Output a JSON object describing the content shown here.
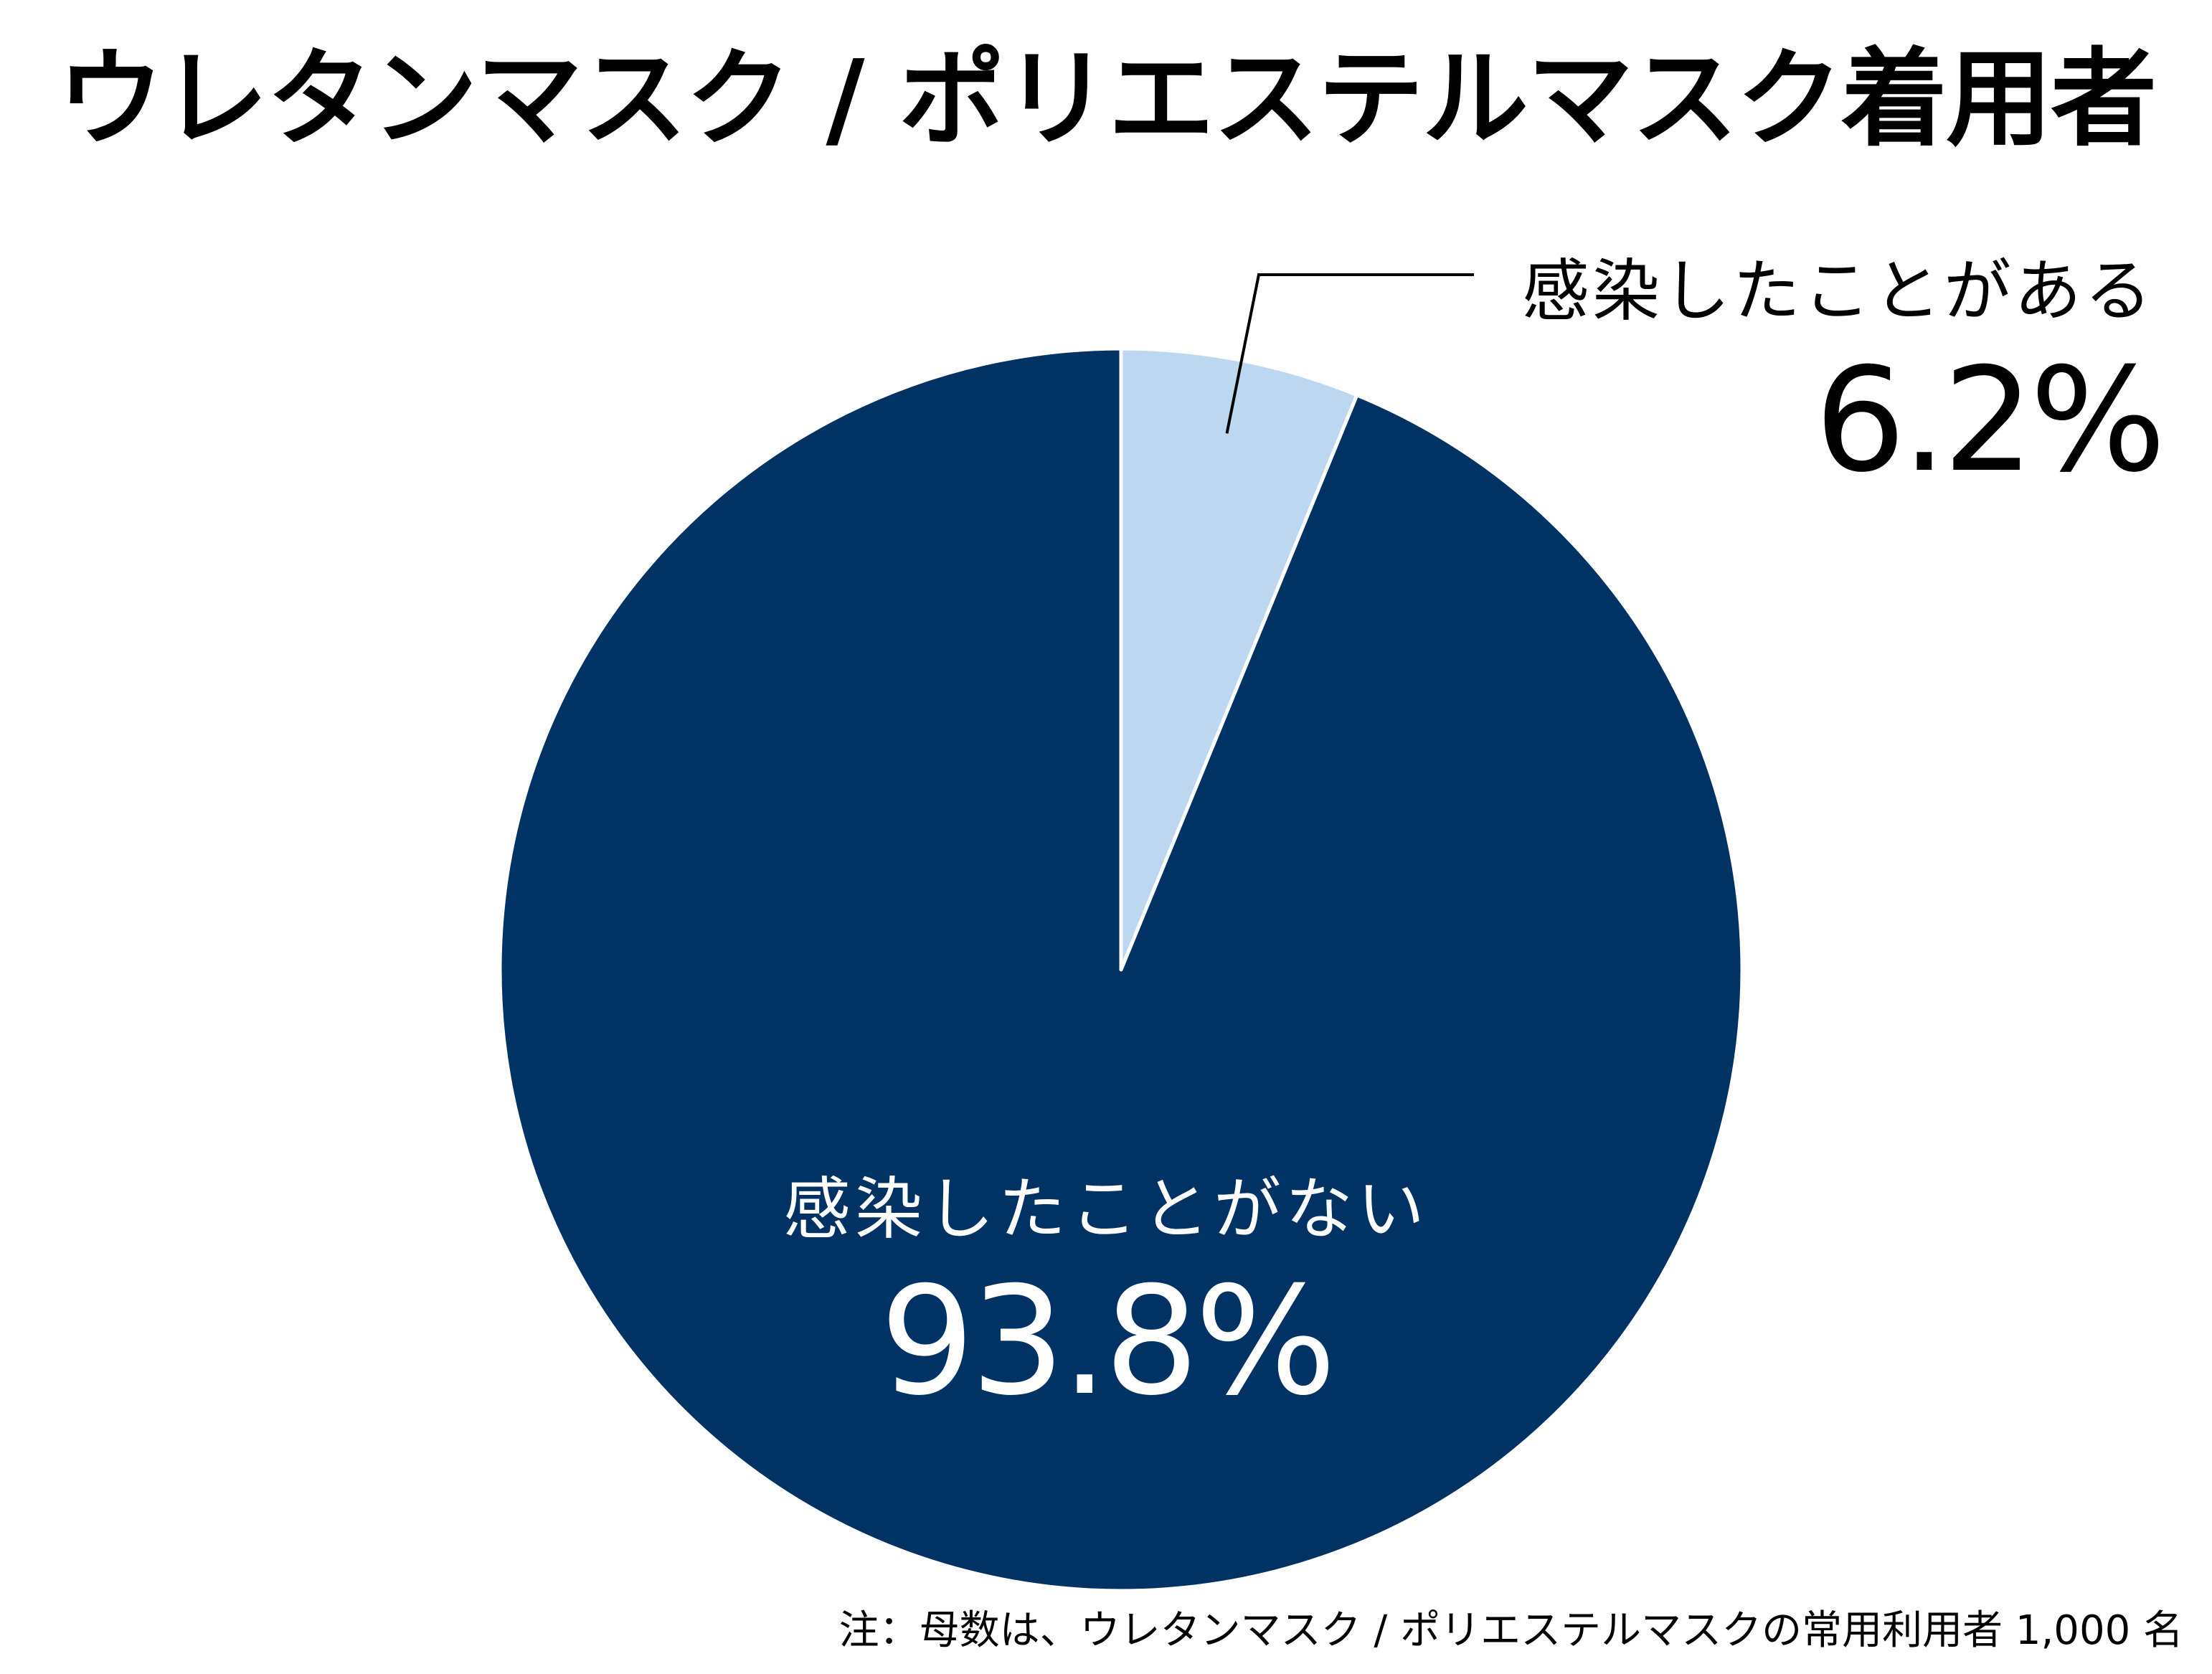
{
  "chart_data": {
    "type": "pie",
    "title": "ウレタンマスク / ポリエステルマスク着用者",
    "slices": [
      {
        "label": "感染したことがある",
        "value": 6.2,
        "value_text": "6.2%",
        "color": "#bdd7f0"
      },
      {
        "label": "感染したことがない",
        "value": 93.8,
        "value_text": "93.8%",
        "color": "#003363"
      }
    ],
    "start_angle_deg": 0,
    "direction": "clockwise",
    "separator_color": "#ffffff",
    "leader_line_color": "#000000",
    "note": "注：母数は、ウレタンマスク / ポリエステルマスクの常用利用者 1,000 名"
  }
}
